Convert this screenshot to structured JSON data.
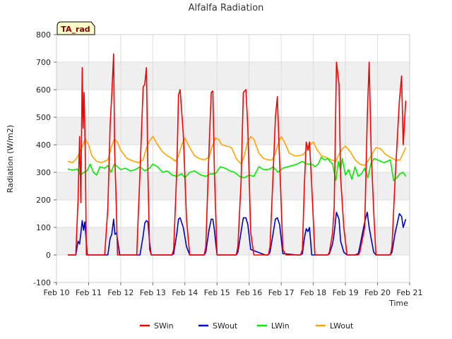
{
  "chart_data": {
    "type": "line",
    "title": "Alfalfa Radiation",
    "xlabel": "Time",
    "ylabel": "Radiation (W/m2)",
    "badge": "TA_rad",
    "ylim": [
      -100,
      800
    ],
    "xlim": [
      10,
      21
    ],
    "yticks": [
      -100,
      0,
      100,
      200,
      300,
      400,
      500,
      600,
      700,
      800
    ],
    "xticks": [
      10,
      11,
      12,
      13,
      14,
      15,
      16,
      17,
      18,
      19,
      20,
      21
    ],
    "xtick_labels": [
      "Feb 10",
      "Feb 11",
      "Feb 12",
      "Feb 13",
      "Feb 14",
      "Feb 15",
      "Feb 16",
      "Feb 17",
      "Feb 18",
      "Feb 19",
      "Feb 20",
      "Feb 21"
    ],
    "grid": true,
    "legend_position": "bottom",
    "series": [
      {
        "name": "SWin",
        "color": "#ff0000",
        "x": [
          10.35,
          10.6,
          10.67,
          10.72,
          10.76,
          10.8,
          10.83,
          10.86,
          10.9,
          10.93,
          10.96,
          11.0,
          11.5,
          11.6,
          11.67,
          11.72,
          11.78,
          11.81,
          11.85,
          11.9,
          11.94,
          12.0,
          12.5,
          12.6,
          12.7,
          12.75,
          12.8,
          12.85,
          12.9,
          12.95,
          13.0,
          13.5,
          13.6,
          13.65,
          13.75,
          13.8,
          13.85,
          13.95,
          14.05,
          14.15,
          14.2,
          14.5,
          14.6,
          14.65,
          14.75,
          14.82,
          14.87,
          14.92,
          15.0,
          15.1,
          15.5,
          15.6,
          15.65,
          15.75,
          15.82,
          15.9,
          15.96,
          16.05,
          16.15,
          16.5,
          16.6,
          16.65,
          16.75,
          16.82,
          16.88,
          16.95,
          17.05,
          17.15,
          17.5,
          17.6,
          17.66,
          17.72,
          17.78,
          17.83,
          17.88,
          17.95,
          18.05,
          18.15,
          18.35,
          18.45,
          18.5,
          18.6,
          18.65,
          18.72,
          18.8,
          18.85,
          18.95,
          19.05,
          19.15,
          19.3,
          19.4,
          19.45,
          19.6,
          19.68,
          19.74,
          19.8,
          19.88,
          19.95,
          20.05,
          20.15,
          20.4,
          20.45,
          20.55,
          20.68,
          20.75,
          20.8,
          20.88
        ],
        "values": [
          0,
          0,
          200,
          430,
          190,
          680,
          460,
          590,
          340,
          0,
          0,
          0,
          0,
          170,
          470,
          580,
          730,
          380,
          230,
          0,
          0,
          0,
          0,
          300,
          610,
          620,
          680,
          290,
          20,
          0,
          0,
          0,
          0,
          20,
          320,
          580,
          600,
          440,
          130,
          0,
          0,
          0,
          0,
          30,
          380,
          590,
          595,
          300,
          0,
          0,
          0,
          0,
          30,
          270,
          590,
          600,
          460,
          80,
          0,
          0,
          0,
          30,
          300,
          500,
          575,
          340,
          20,
          0,
          0,
          0,
          20,
          250,
          410,
          380,
          410,
          250,
          0,
          0,
          0,
          0,
          10,
          80,
          175,
          700,
          620,
          280,
          100,
          0,
          0,
          0,
          0,
          10,
          100,
          500,
          700,
          380,
          160,
          0,
          0,
          0,
          0,
          30,
          280,
          560,
          650,
          400,
          560
        ]
      },
      {
        "name": "SWout",
        "color": "#0000cc",
        "x": [
          10.35,
          10.6,
          10.67,
          10.72,
          10.76,
          10.8,
          10.84,
          10.88,
          10.92,
          10.96,
          11.0,
          11.5,
          11.6,
          11.67,
          11.72,
          11.78,
          11.82,
          11.87,
          11.92,
          11.97,
          12.0,
          12.5,
          12.6,
          12.7,
          12.75,
          12.8,
          12.85,
          12.9,
          12.95,
          13.0,
          13.5,
          13.6,
          13.65,
          13.75,
          13.8,
          13.85,
          13.95,
          14.05,
          14.15,
          14.5,
          14.6,
          14.65,
          14.75,
          14.82,
          14.87,
          14.92,
          15.0,
          15.5,
          15.6,
          15.65,
          15.75,
          15.82,
          15.9,
          15.96,
          16.05,
          16.5,
          16.6,
          16.65,
          16.75,
          16.82,
          16.88,
          16.95,
          17.05,
          17.5,
          17.6,
          17.66,
          17.72,
          17.78,
          17.83,
          17.88,
          17.95,
          18.05,
          18.35,
          18.45,
          18.5,
          18.6,
          18.65,
          18.72,
          18.8,
          18.85,
          18.95,
          19.05,
          19.3,
          19.4,
          19.45,
          19.6,
          19.68,
          19.74,
          19.8,
          19.88,
          19.95,
          20.05,
          20.4,
          20.45,
          20.55,
          20.68,
          20.75,
          20.8,
          20.88
        ],
        "values": [
          0,
          0,
          50,
          40,
          80,
          125,
          90,
          120,
          60,
          0,
          0,
          0,
          0,
          60,
          75,
          130,
          75,
          80,
          40,
          0,
          0,
          0,
          0,
          70,
          115,
          125,
          120,
          45,
          0,
          0,
          0,
          0,
          5,
          80,
          130,
          135,
          100,
          30,
          0,
          0,
          0,
          10,
          90,
          130,
          130,
          90,
          0,
          0,
          0,
          10,
          85,
          135,
          135,
          110,
          20,
          0,
          0,
          10,
          80,
          130,
          135,
          110,
          5,
          0,
          0,
          5,
          60,
          95,
          85,
          100,
          0,
          0,
          0,
          0,
          5,
          40,
          80,
          155,
          130,
          50,
          10,
          0,
          0,
          5,
          30,
          120,
          155,
          100,
          60,
          10,
          0,
          0,
          0,
          10,
          80,
          150,
          140,
          100,
          130
        ]
      },
      {
        "name": "LWin",
        "color": "#00ee00",
        "x": [
          10.35,
          10.5,
          10.65,
          10.75,
          10.85,
          10.95,
          11.05,
          11.15,
          11.25,
          11.35,
          11.5,
          11.6,
          11.7,
          11.8,
          11.9,
          12.0,
          12.15,
          12.3,
          12.45,
          12.6,
          12.75,
          12.9,
          13.0,
          13.15,
          13.3,
          13.45,
          13.6,
          13.75,
          13.9,
          14.0,
          14.15,
          14.3,
          14.5,
          14.65,
          14.8,
          14.95,
          15.1,
          15.25,
          15.4,
          15.55,
          15.7,
          15.85,
          16.0,
          16.15,
          16.3,
          16.45,
          16.6,
          16.75,
          16.9,
          17.05,
          17.2,
          17.35,
          17.5,
          17.65,
          17.8,
          17.95,
          18.05,
          18.15,
          18.25,
          18.35,
          18.45,
          18.52,
          18.6,
          18.7,
          18.78,
          18.85,
          18.9,
          19.0,
          19.1,
          19.2,
          19.3,
          19.4,
          19.5,
          19.6,
          19.7,
          19.8,
          19.9,
          20.0,
          20.1,
          20.2,
          20.3,
          20.4,
          20.5,
          20.6,
          20.7,
          20.8,
          20.88
        ],
        "values": [
          312,
          308,
          312,
          290,
          300,
          305,
          330,
          300,
          290,
          320,
          315,
          325,
          300,
          330,
          320,
          310,
          315,
          305,
          310,
          320,
          305,
          315,
          330,
          320,
          300,
          305,
          290,
          285,
          295,
          280,
          300,
          305,
          290,
          285,
          295,
          295,
          320,
          315,
          305,
          300,
          285,
          280,
          290,
          285,
          320,
          310,
          310,
          320,
          300,
          315,
          320,
          325,
          330,
          340,
          330,
          330,
          320,
          330,
          355,
          345,
          350,
          340,
          330,
          270,
          340,
          310,
          350,
          290,
          310,
          275,
          320,
          285,
          295,
          315,
          280,
          335,
          350,
          345,
          340,
          335,
          340,
          345,
          270,
          280,
          295,
          300,
          285
        ]
      },
      {
        "name": "LWout",
        "color": "#ffa500",
        "x": [
          10.35,
          10.5,
          10.62,
          10.72,
          10.82,
          10.9,
          11.0,
          11.1,
          11.25,
          11.4,
          11.5,
          11.6,
          11.7,
          11.8,
          11.9,
          12.0,
          12.2,
          12.4,
          12.55,
          12.7,
          12.8,
          12.9,
          13.0,
          13.15,
          13.3,
          13.45,
          13.6,
          13.7,
          13.8,
          13.9,
          14.0,
          14.15,
          14.3,
          14.45,
          14.6,
          14.75,
          14.85,
          14.95,
          15.05,
          15.15,
          15.3,
          15.45,
          15.6,
          15.75,
          15.85,
          15.95,
          16.05,
          16.15,
          16.3,
          16.45,
          16.6,
          16.72,
          16.82,
          16.92,
          17.0,
          17.1,
          17.25,
          17.4,
          17.55,
          17.7,
          17.8,
          17.9,
          18.0,
          18.1,
          18.25,
          18.4,
          18.55,
          18.7,
          18.8,
          18.9,
          19.0,
          19.15,
          19.3,
          19.45,
          19.6,
          19.75,
          19.85,
          19.95,
          20.1,
          20.25,
          20.4,
          20.55,
          20.7,
          20.8,
          20.88
        ],
        "values": [
          340,
          335,
          350,
          370,
          400,
          420,
          400,
          360,
          340,
          335,
          340,
          345,
          390,
          420,
          410,
          380,
          350,
          340,
          335,
          345,
          390,
          415,
          430,
          400,
          375,
          360,
          350,
          340,
          360,
          400,
          425,
          390,
          360,
          350,
          345,
          355,
          395,
          425,
          420,
          400,
          395,
          390,
          350,
          330,
          360,
          410,
          430,
          420,
          370,
          350,
          345,
          345,
          370,
          410,
          430,
          410,
          370,
          360,
          360,
          365,
          385,
          400,
          410,
          385,
          360,
          355,
          345,
          340,
          365,
          385,
          395,
          375,
          345,
          330,
          325,
          350,
          370,
          390,
          385,
          365,
          355,
          345,
          345,
          370,
          390
        ]
      }
    ]
  }
}
